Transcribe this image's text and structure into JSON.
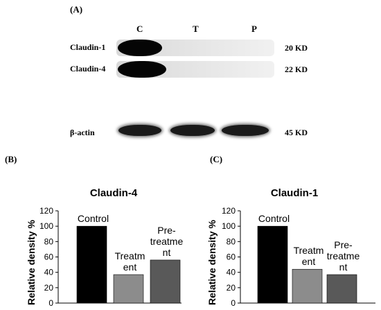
{
  "blot": {
    "panel_letter": "(A)",
    "lanes": [
      "C",
      "T",
      "P"
    ],
    "rows": [
      {
        "protein": "Claudin-1",
        "weight": "20 KD"
      },
      {
        "protein": "Claudin-4",
        "weight": "22 KD"
      },
      {
        "protein": "β-actin",
        "weight": "45 KD"
      }
    ]
  },
  "panels": {
    "b_letter": "(B)",
    "c_letter": "(C)"
  },
  "chart_data": [
    {
      "type": "bar",
      "title": "Claudin-4",
      "categories": [
        "Control",
        "Treatment",
        "Pre-treatment"
      ],
      "category_labels": [
        [
          "Control"
        ],
        [
          "Treatm",
          "ent"
        ],
        [
          "Pre-",
          "treatme",
          "nt"
        ]
      ],
      "values": [
        100,
        37,
        56
      ],
      "bar_colors": [
        "#000000",
        "#8c8c8c",
        "#595959"
      ],
      "xlabel": "",
      "ylabel": "Relative density %",
      "ylim": [
        0,
        120
      ],
      "yticks": [
        "0",
        "20",
        "40",
        "60",
        "80",
        "100",
        "120"
      ],
      "grid": false
    },
    {
      "type": "bar",
      "title": "Claudin-1",
      "categories": [
        "Control",
        "Treatment",
        "Pre-treatment"
      ],
      "category_labels": [
        [
          "Control"
        ],
        [
          "Treatm",
          "ent"
        ],
        [
          "Pre-",
          "treatme",
          "nt"
        ]
      ],
      "values": [
        100,
        44,
        37
      ],
      "bar_colors": [
        "#000000",
        "#8c8c8c",
        "#595959"
      ],
      "xlabel": "",
      "ylabel": "Relative density %",
      "ylim": [
        0,
        120
      ],
      "yticks": [
        "0",
        "20",
        "40",
        "60",
        "80",
        "100",
        "120"
      ],
      "grid": false
    }
  ]
}
